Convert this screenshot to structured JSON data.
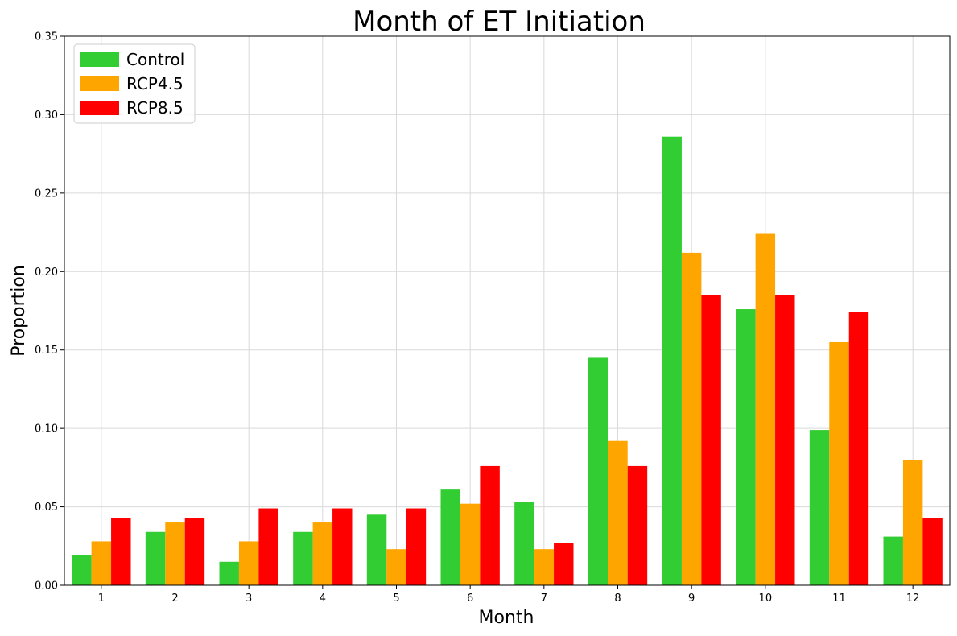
{
  "chart_data": {
    "type": "bar",
    "title": "Month of ET Initiation",
    "xlabel": "Month",
    "ylabel": "Proportion",
    "categories": [
      "1",
      "2",
      "3",
      "4",
      "5",
      "6",
      "7",
      "8",
      "9",
      "10",
      "11",
      "12"
    ],
    "ylim": [
      0,
      0.35
    ],
    "yticks": [
      "0.00",
      "0.05",
      "0.10",
      "0.15",
      "0.20",
      "0.25",
      "0.30",
      "0.35"
    ],
    "grid": true,
    "legend_position": "top-left",
    "series": [
      {
        "name": "Control",
        "color": "#32cd32",
        "values": [
          0.019,
          0.034,
          0.015,
          0.034,
          0.045,
          0.061,
          0.053,
          0.145,
          0.286,
          0.176,
          0.099,
          0.031
        ]
      },
      {
        "name": "RCP4.5",
        "color": "#ffa500",
        "values": [
          0.028,
          0.04,
          0.028,
          0.04,
          0.023,
          0.052,
          0.023,
          0.092,
          0.212,
          0.224,
          0.155,
          0.08
        ]
      },
      {
        "name": "RCP8.5",
        "color": "#ff0000",
        "values": [
          0.043,
          0.043,
          0.049,
          0.049,
          0.049,
          0.076,
          0.027,
          0.076,
          0.185,
          0.185,
          0.174,
          0.043
        ]
      }
    ]
  }
}
